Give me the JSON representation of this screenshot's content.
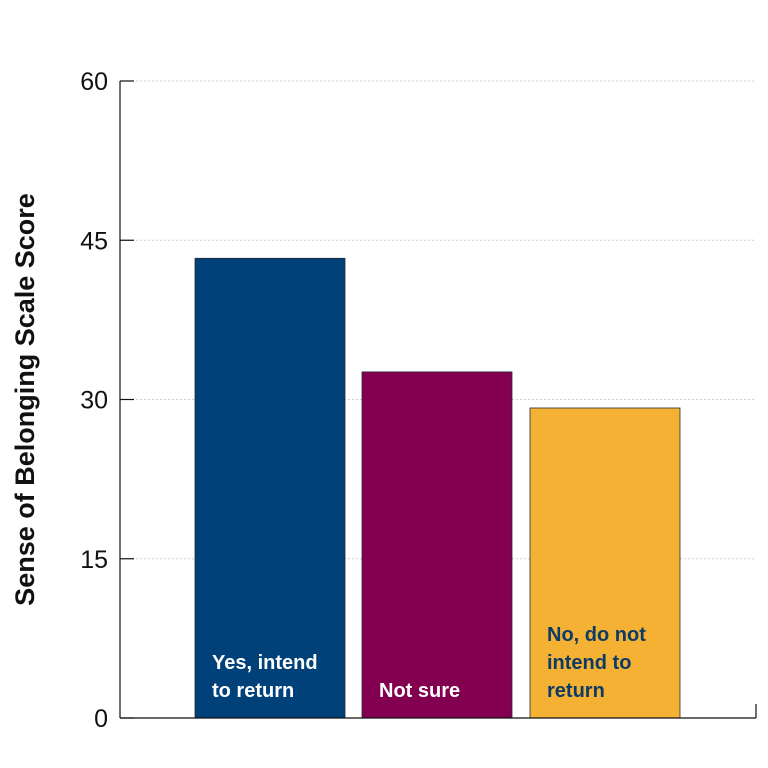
{
  "chart_data": {
    "type": "bar",
    "title": "",
    "xlabel": "",
    "ylabel": "Sense of Belonging Scale Score",
    "ylim": [
      0,
      60
    ],
    "yticks": [
      0,
      15,
      30,
      45,
      60
    ],
    "grid": true,
    "legend": "none",
    "categories": [
      [
        "Yes, intend",
        "to return"
      ],
      [
        "Not sure"
      ],
      [
        "No, do not",
        "intend to",
        "return"
      ]
    ],
    "values": [
      43.3,
      32.6,
      29.2
    ],
    "colors": [
      "#00417a",
      "#82004f",
      "#f4b133"
    ],
    "label_colors": [
      "#ffffff",
      "#ffffff",
      "#0d3b66"
    ]
  }
}
